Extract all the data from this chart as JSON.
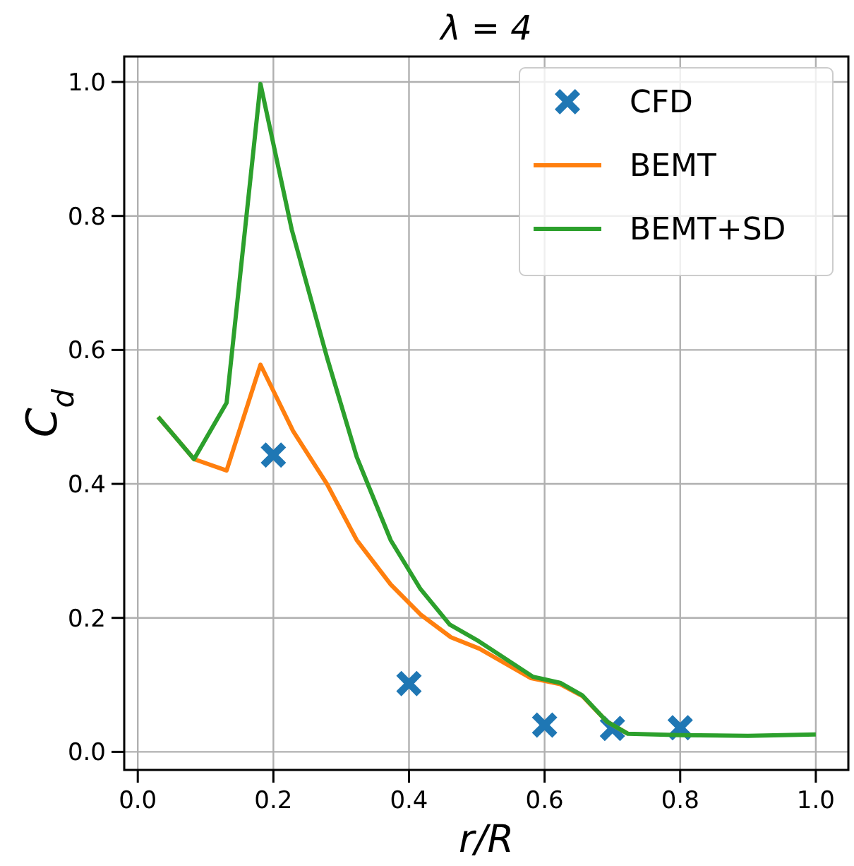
{
  "chart_data": {
    "type": "line",
    "title": "λ = 4",
    "xlabel": "r/R",
    "ylabel": "C$_{d}$",
    "xlim": [
      -0.02,
      1.048
    ],
    "ylim": [
      -0.027,
      1.038
    ],
    "xticks": [
      {
        "value": 0,
        "label": "0.0"
      },
      0.2,
      0.4,
      0.6,
      0.8,
      {
        "value": 1,
        "label": "1.0"
      }
    ],
    "yticks": [
      {
        "value": 0,
        "label": "0.0"
      },
      0.2,
      0.4,
      0.6,
      0.8,
      {
        "value": 1,
        "label": "1.0"
      }
    ],
    "grid": true,
    "legend": "top right",
    "series": [
      {
        "name": "CFD",
        "type": "scatter",
        "marker": "cross",
        "color": "#1f77b4",
        "x": [
          0.2,
          0.4,
          0.6,
          0.7,
          0.8
        ],
        "values": [
          0.443,
          0.102,
          0.04,
          0.035,
          0.036
        ]
      },
      {
        "name": "BEMT",
        "color": "#ff7f0e",
        "x": [
          0.03,
          0.083,
          0.131,
          0.181,
          0.229,
          0.279,
          0.323,
          0.373,
          0.417,
          0.462,
          0.504,
          0.58,
          0.623,
          0.656,
          0.692,
          0.723
        ],
        "values": [
          0.5,
          0.437,
          0.42,
          0.578,
          0.479,
          0.4,
          0.316,
          0.25,
          0.205,
          0.171,
          0.154,
          0.11,
          0.101,
          0.083,
          0.045,
          0.027
        ]
      },
      {
        "name": "BEMT+SD",
        "color": "#2ca02c",
        "x": [
          0.03,
          0.083,
          0.131,
          0.181,
          0.227,
          0.279,
          0.323,
          0.373,
          0.417,
          0.46,
          0.5,
          0.583,
          0.623,
          0.656,
          0.692,
          0.723,
          0.8,
          0.9,
          1.0
        ],
        "values": [
          0.5,
          0.437,
          0.521,
          0.997,
          0.78,
          0.589,
          0.44,
          0.316,
          0.243,
          0.19,
          0.167,
          0.112,
          0.103,
          0.084,
          0.045,
          0.027,
          0.025,
          0.024,
          0.026
        ]
      }
    ]
  }
}
